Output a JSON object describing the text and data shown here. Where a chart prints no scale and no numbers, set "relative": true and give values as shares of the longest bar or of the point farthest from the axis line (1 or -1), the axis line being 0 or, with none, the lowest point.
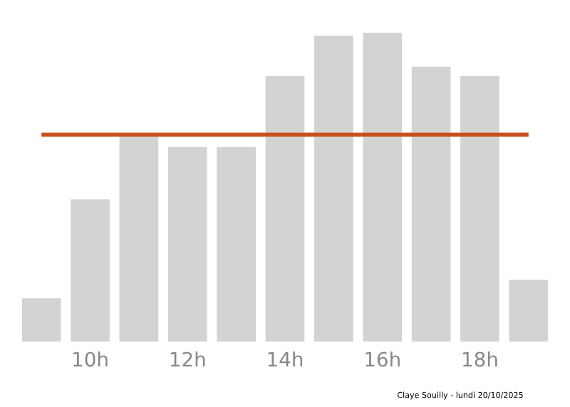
{
  "chart_data": {
    "type": "bar",
    "relative": true,
    "categories": [
      null,
      "10h",
      null,
      "12h",
      null,
      "14h",
      null,
      "16h",
      null,
      "18h",
      null
    ],
    "values": [
      0.14,
      0.46,
      0.67,
      0.63,
      0.63,
      0.86,
      0.99,
      1,
      0.89,
      0.86,
      0.2
    ],
    "color": "#d3d3d3",
    "ref_lines": [
      {
        "axis": "y",
        "value": 0.67,
        "color": "#c8501e"
      }
    ],
    "annotations": [
      "Claye Souilly - lundi 20/10/2025"
    ],
    "grid": false,
    "legend": false
  }
}
